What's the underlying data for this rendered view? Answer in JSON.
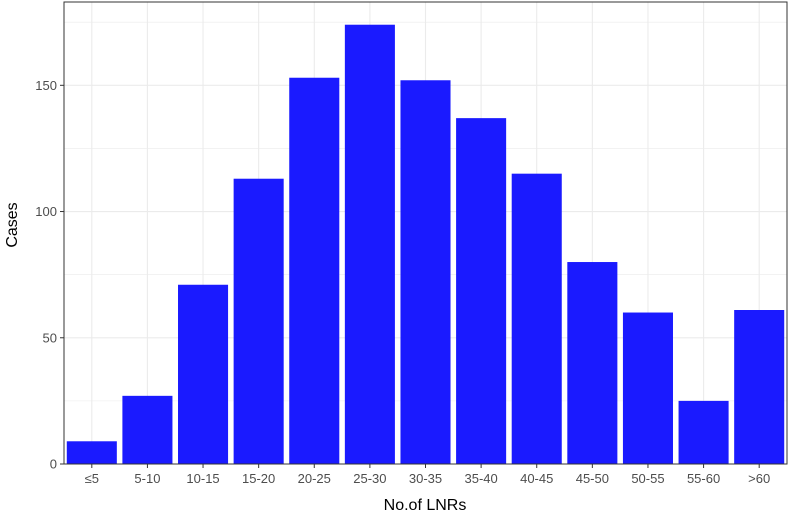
{
  "chart_data": {
    "type": "bar",
    "title": "",
    "xlabel": "No.of LNRs",
    "ylabel": "Cases",
    "categories": [
      "≤5",
      "5-10",
      "10-15",
      "15-20",
      "20-25",
      "25-30",
      "30-35",
      "35-40",
      "40-45",
      "45-50",
      "50-55",
      "55-60",
      ">60"
    ],
    "values": [
      9,
      27,
      71,
      113,
      153,
      174,
      152,
      137,
      115,
      80,
      60,
      25,
      61
    ],
    "ylim": [
      0,
      183
    ],
    "yticks": [
      0,
      50,
      100,
      150
    ],
    "grid": true,
    "legend": "none",
    "bar_color": "#1a1aff",
    "frame_color": "#333333",
    "grid_color": "#ebebeb"
  }
}
